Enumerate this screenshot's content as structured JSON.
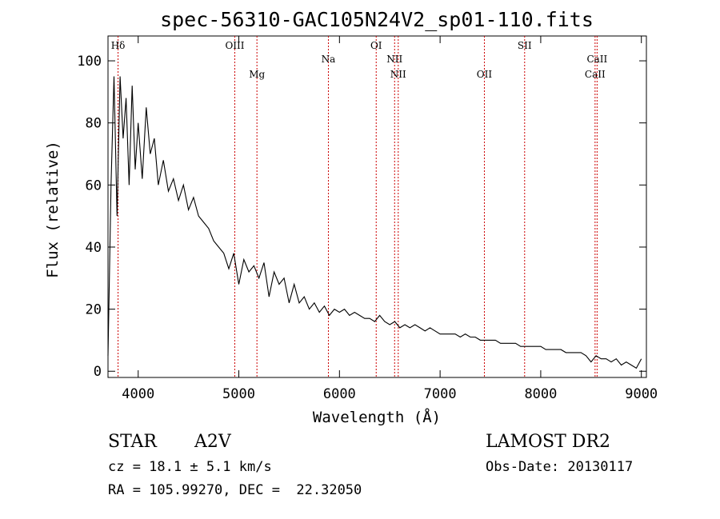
{
  "chart_data": {
    "type": "line",
    "title": "spec-56310-GAC105N24V2_sp01-110.fits",
    "xlabel": "Wavelength (Å)",
    "ylabel": "Flux (relative)",
    "xlim": [
      3700,
      9050
    ],
    "ylim": [
      -2,
      108
    ],
    "x_ticks": [
      4000,
      5000,
      6000,
      7000,
      8000,
      9000
    ],
    "y_ticks": [
      0,
      20,
      40,
      60,
      80,
      100
    ],
    "grid": false,
    "series_color": "#000000",
    "line_marker_color": "#cc0000",
    "line_markers": [
      {
        "label": "Hδ",
        "x": 3800,
        "pos": "top"
      },
      {
        "label": "OIII",
        "x": 4960,
        "pos": "top"
      },
      {
        "label": "Mg",
        "x": 5180,
        "pos": "low"
      },
      {
        "label": "Na",
        "x": 5890,
        "pos": "mid"
      },
      {
        "label": "OI",
        "x": 6365,
        "pos": "top"
      },
      {
        "label": "NII",
        "x": 6548,
        "pos": "mid"
      },
      {
        "label": "NII",
        "x": 6584,
        "pos": "low"
      },
      {
        "label": "OII",
        "x": 7440,
        "pos": "low"
      },
      {
        "label": "SII",
        "x": 7840,
        "pos": "top"
      },
      {
        "label": "CaII",
        "x": 8540,
        "pos": "low"
      },
      {
        "label": "CaII",
        "x": 8560,
        "pos": "mid"
      }
    ],
    "series": [
      {
        "x": [
          3700,
          3730,
          3760,
          3790,
          3820,
          3850,
          3880,
          3910,
          3940,
          3970,
          4000,
          4040,
          4080,
          4120,
          4160,
          4200,
          4250,
          4300,
          4350,
          4400,
          4450,
          4500,
          4550,
          4600,
          4650,
          4700,
          4750,
          4800,
          4850,
          4900,
          4950,
          5000,
          5050,
          5100,
          5150,
          5200,
          5250,
          5300,
          5350,
          5400,
          5450,
          5500,
          5550,
          5600,
          5650,
          5700,
          5750,
          5800,
          5850,
          5900,
          5950,
          6000,
          6050,
          6100,
          6150,
          6200,
          6250,
          6300,
          6350,
          6400,
          6450,
          6500,
          6550,
          6600,
          6650,
          6700,
          6750,
          6800,
          6850,
          6900,
          6950,
          7000,
          7050,
          7100,
          7150,
          7200,
          7250,
          7300,
          7350,
          7400,
          7450,
          7500,
          7550,
          7600,
          7650,
          7700,
          7750,
          7800,
          7850,
          7900,
          7950,
          8000,
          8050,
          8100,
          8150,
          8200,
          8250,
          8300,
          8350,
          8400,
          8450,
          8500,
          8550,
          8600,
          8650,
          8700,
          8750,
          8800,
          8850,
          8900,
          8950,
          9000
        ],
        "y": [
          5,
          60,
          95,
          50,
          95,
          75,
          88,
          60,
          92,
          65,
          80,
          62,
          85,
          70,
          75,
          60,
          68,
          58,
          62,
          55,
          60,
          52,
          56,
          50,
          48,
          46,
          42,
          40,
          38,
          33,
          38,
          28,
          36,
          32,
          34,
          30,
          35,
          24,
          32,
          28,
          30,
          22,
          28,
          22,
          24,
          20,
          22,
          19,
          21,
          18,
          20,
          19,
          20,
          18,
          19,
          18,
          17,
          17,
          16,
          18,
          16,
          15,
          16,
          14,
          15,
          14,
          15,
          14,
          13,
          14,
          13,
          12,
          12,
          12,
          12,
          11,
          12,
          11,
          11,
          10,
          10,
          10,
          10,
          9,
          9,
          9,
          9,
          8,
          8,
          8,
          8,
          8,
          7,
          7,
          7,
          7,
          6,
          6,
          6,
          6,
          5,
          3,
          5,
          4,
          4,
          3,
          4,
          2,
          3,
          2,
          1,
          4
        ]
      }
    ]
  },
  "info": {
    "object_type": "STAR",
    "subclass": "A2V",
    "cz": "cz = 18.1 ± 5.1 km/s",
    "coords": "RA = 105.99270, DEC =  22.32050",
    "survey": "LAMOST DR2",
    "obs_date": "Obs-Date: 20130117"
  }
}
